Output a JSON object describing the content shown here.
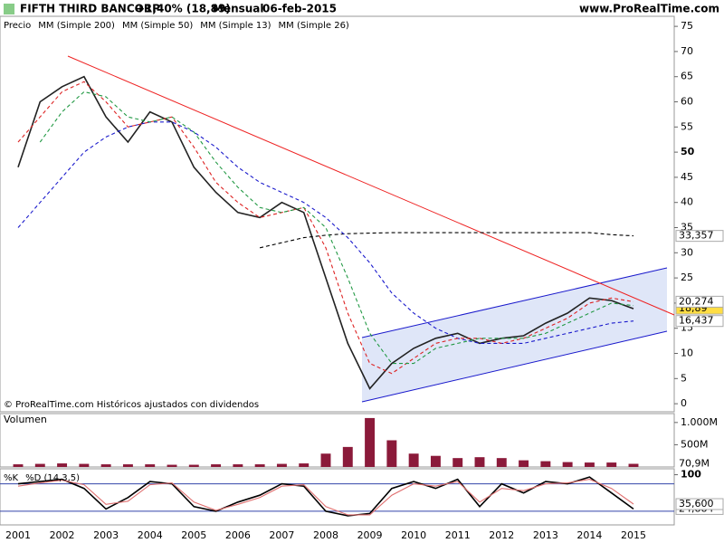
{
  "header": {
    "title": "FIFTH THIRD BANCORP",
    "change": "+1,40% (18,89)",
    "period": "Mensual",
    "date": "06-feb-2015",
    "site": "www.ProRealTime.com",
    "footnote": "© ProRealTime.com  Históricos ajustados con dividendos"
  },
  "chart_data": [
    {
      "type": "line",
      "categories": [
        "2001",
        null,
        "2002",
        null,
        "2003",
        null,
        "2004",
        null,
        "2005",
        null,
        "2006",
        null,
        "2007",
        null,
        "2008",
        null,
        "2009",
        null,
        "2010",
        null,
        "2011",
        null,
        "2012",
        null,
        "2013",
        null,
        "2014",
        null,
        "2015"
      ],
      "ylim": [
        -1.6,
        77
      ],
      "yticks": [
        0,
        5,
        10,
        15,
        20,
        25,
        30,
        35,
        40,
        45,
        50,
        55,
        60,
        65,
        70,
        75
      ],
      "series": [
        {
          "name": "Precio",
          "color": "#222222",
          "values": [
            47,
            60,
            63,
            65,
            57,
            52,
            58,
            56,
            47,
            42,
            38,
            37,
            40,
            38,
            25,
            12,
            3,
            8,
            11,
            13,
            14,
            12,
            13,
            13.5,
            16,
            18,
            21,
            20.5,
            18.89
          ],
          "last": 18.89,
          "last_label": "18,89"
        },
        {
          "name": "MM (Simple 200)",
          "color": "#000000",
          "values": [
            null,
            null,
            null,
            null,
            null,
            null,
            null,
            null,
            null,
            null,
            null,
            31,
            32,
            33,
            33.5,
            33.8,
            33.9,
            34,
            34,
            34,
            34,
            34,
            34,
            34,
            34,
            34,
            34,
            33.6,
            33.357
          ],
          "last": 33.357,
          "last_label": "33,357"
        },
        {
          "name": "MM (Simple 50)",
          "color": "#1a1acc",
          "values": [
            35,
            40,
            45,
            50,
            53,
            55,
            56,
            56,
            54,
            51,
            47,
            44,
            42,
            40,
            37,
            33,
            28,
            22,
            18,
            15,
            13,
            12,
            12,
            12,
            13,
            14,
            15,
            16,
            16.437
          ],
          "last": 16.437,
          "last_label": "16,437"
        },
        {
          "name": "MM (Simple 13)",
          "color": "#dd2222",
          "values": [
            52,
            57,
            62,
            64,
            60,
            55,
            56,
            57,
            51,
            44,
            40,
            37,
            38,
            39,
            31,
            18,
            8,
            6,
            9,
            12,
            13,
            13,
            12,
            13,
            15,
            17,
            20,
            21,
            20.274
          ],
          "last": 20.274,
          "last_label": "20,274"
        },
        {
          "name": "MM (Simple 26)",
          "color": "#229944",
          "values": [
            null,
            52,
            58,
            62,
            61,
            57,
            56,
            57,
            54,
            48,
            43,
            39,
            38,
            39,
            35,
            25,
            14,
            8,
            8,
            11,
            12,
            13,
            13,
            13,
            14,
            16,
            18,
            20,
            19.5
          ]
        }
      ]
    },
    {
      "type": "bar",
      "title": "Volumen",
      "color": "#8b1a3a",
      "ylim": [
        0,
        1200
      ],
      "yticks": [
        {
          "value": 1000,
          "label": "1.000M"
        },
        {
          "value": 500,
          "label": "500M"
        }
      ],
      "values": [
        60,
        70,
        80,
        70,
        60,
        60,
        60,
        50,
        50,
        60,
        60,
        60,
        70,
        80,
        300,
        450,
        1100,
        600,
        300,
        250,
        200,
        220,
        200,
        150,
        130,
        110,
        100,
        100,
        70.9
      ],
      "last": 70.9,
      "last_label": "70,9M"
    },
    {
      "type": "line",
      "ylim": [
        -10,
        113
      ],
      "yticks": [
        100
      ],
      "levels": [
        80,
        20
      ],
      "series": [
        {
          "name": "%K",
          "color": "#000000",
          "values": [
            80,
            85,
            90,
            70,
            25,
            50,
            85,
            80,
            30,
            20,
            40,
            55,
            80,
            75,
            20,
            10,
            15,
            70,
            85,
            70,
            90,
            30,
            80,
            60,
            85,
            80,
            95,
            60,
            24.884
          ],
          "last": 24.884,
          "last_label": "24,884"
        },
        {
          "name": "%D (14,3,5)",
          "color": "#e07070",
          "values": [
            75,
            82,
            88,
            78,
            35,
            42,
            78,
            82,
            40,
            22,
            35,
            50,
            75,
            78,
            30,
            12,
            12,
            55,
            80,
            75,
            85,
            40,
            70,
            65,
            80,
            82,
            90,
            70,
            35.6
          ],
          "last": 35.6,
          "last_label": "35,600"
        }
      ]
    }
  ]
}
